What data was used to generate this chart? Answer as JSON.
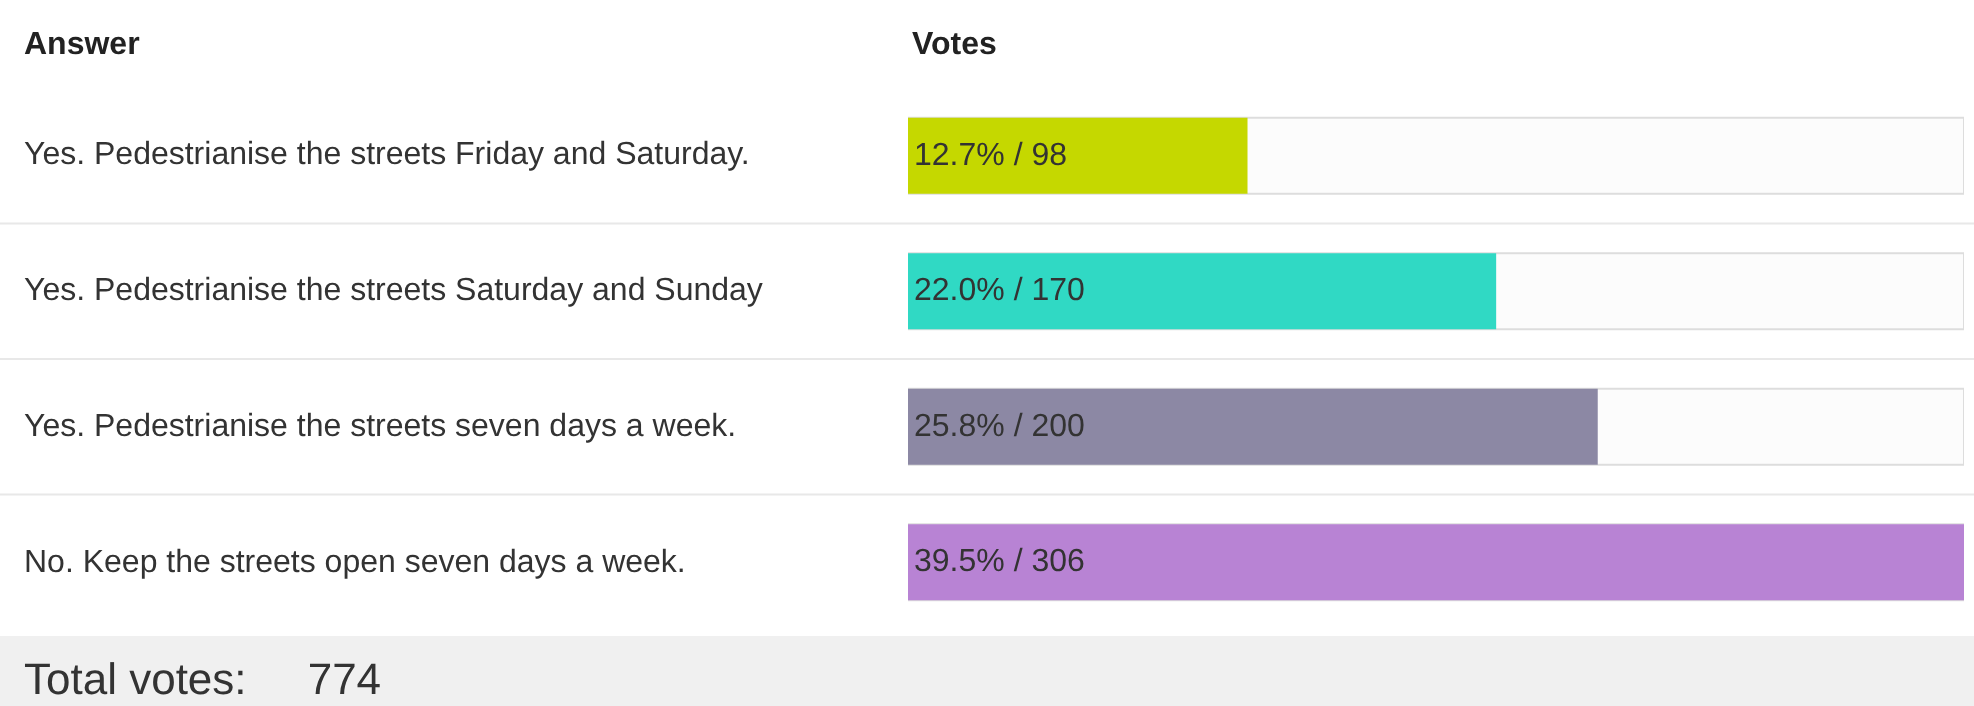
{
  "chart_data": {
    "type": "bar",
    "orientation": "horizontal",
    "ylabel": "Answer",
    "xlabel": "Votes",
    "categories": [
      "Yes. Pedestrianise the streets Friday and Saturday.",
      "Yes. Pedestrianise the streets Saturday and Sunday",
      "Yes. Pedestrianise the streets seven days a week.",
      "No. Keep the streets open seven days a week."
    ],
    "values": [
      12.7,
      22.0,
      25.8,
      39.5
    ],
    "value_labels": [
      "12.7% / 98",
      "22.0% / 170",
      "25.8% / 200",
      "39.5% / 306"
    ],
    "colors": [
      "#c5d800",
      "#30d9c4",
      "#8c88a4",
      "#b883d4"
    ],
    "annotations": [
      "Total votes:     774"
    ],
    "grid": false,
    "legend": false
  }
}
